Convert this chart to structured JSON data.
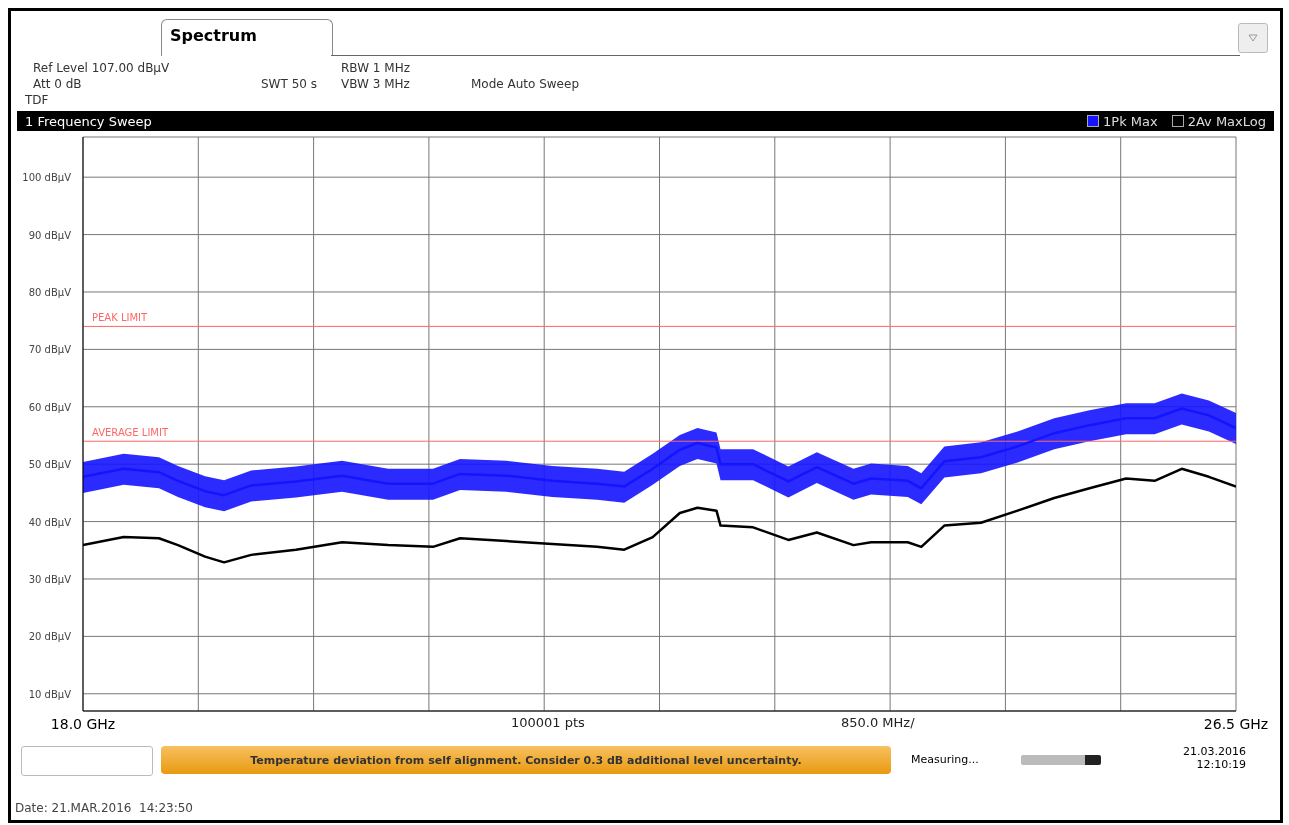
{
  "chart_data": {
    "type": "line",
    "title": "1 Frequency Sweep",
    "annotations": [
      "Spectrum",
      "Ref Level 107.00 dBµV",
      "Att 0 dB",
      "SWT 50 s",
      "RBW 1 MHz",
      "VBW 3 MHz",
      "Mode Auto Sweep",
      "TDF",
      "100001 pts",
      "850.0 MHz/",
      "Temperature deviation from self alignment. Consider 0.3 dB additional level uncertainty.",
      "Measuring...",
      "21.03.2016 12:10:19",
      "Date: 21.MAR.2016  14:23:50"
    ],
    "x": [
      18.0,
      18.3,
      18.56,
      18.7,
      18.9,
      19.04,
      19.24,
      19.57,
      19.91,
      20.25,
      20.58,
      20.78,
      21.12,
      21.46,
      21.79,
      21.99,
      22.2,
      22.4,
      22.53,
      22.67,
      22.7,
      22.94,
      23.2,
      23.41,
      23.68,
      23.81,
      24.08,
      24.18,
      24.35,
      24.62,
      24.89,
      25.16,
      25.42,
      25.69,
      25.9,
      26.1,
      26.3,
      26.5
    ],
    "series": [
      {
        "name": "1Pk Max",
        "color": "#1414ff",
        "values": [
          47.8,
          49.2,
          48.6,
          47.1,
          45.3,
          44.6,
          46.3,
          47.0,
          48.0,
          46.6,
          46.6,
          48.3,
          48.0,
          47.1,
          46.6,
          46.1,
          49.2,
          52.5,
          53.7,
          52.9,
          50.0,
          50.0,
          47.0,
          49.5,
          46.6,
          47.5,
          47.1,
          45.8,
          50.5,
          51.2,
          53.1,
          55.4,
          56.8,
          58.0,
          58.0,
          59.7,
          58.5,
          56.3
        ],
        "lower": [
          45.0,
          46.4,
          45.8,
          44.3,
          42.5,
          41.8,
          43.5,
          44.2,
          45.2,
          43.8,
          43.8,
          45.5,
          45.2,
          44.3,
          43.8,
          43.3,
          46.4,
          49.7,
          50.9,
          50.1,
          47.2,
          47.2,
          44.2,
          46.7,
          43.8,
          44.7,
          44.3,
          43.0,
          47.7,
          48.4,
          50.3,
          52.6,
          54.0,
          55.2,
          55.2,
          56.9,
          55.7,
          53.5
        ],
        "upper": [
          50.4,
          51.8,
          51.2,
          49.7,
          47.9,
          47.2,
          48.9,
          49.6,
          50.6,
          49.2,
          49.2,
          50.9,
          50.6,
          49.7,
          49.2,
          48.7,
          51.8,
          55.1,
          56.3,
          55.5,
          52.6,
          52.6,
          49.6,
          52.1,
          49.2,
          50.1,
          49.7,
          48.4,
          53.1,
          53.8,
          55.7,
          58.0,
          59.4,
          60.6,
          60.6,
          62.3,
          61.1,
          58.9
        ]
      },
      {
        "name": "2Av MaxLog",
        "color": "#000000",
        "values": [
          35.9,
          37.3,
          37.1,
          35.9,
          33.9,
          32.9,
          34.2,
          35.1,
          36.4,
          35.9,
          35.6,
          37.1,
          36.6,
          36.1,
          35.6,
          35.1,
          37.3,
          41.5,
          42.4,
          41.9,
          39.3,
          39.0,
          36.8,
          38.1,
          35.9,
          36.4,
          36.4,
          35.6,
          39.3,
          39.8,
          41.9,
          44.1,
          45.8,
          47.5,
          47.1,
          49.2,
          47.8,
          46.1
        ]
      }
    ],
    "xlim": [
      18.0,
      26.5
    ],
    "xticks": [
      {
        "value": 18.0,
        "label": "18.0 GHz"
      },
      {
        "value": 18.85,
        "label": null
      },
      {
        "value": 19.7,
        "label": null
      },
      {
        "value": 20.55,
        "label": null
      },
      {
        "value": 21.4,
        "label": null
      },
      {
        "value": 22.25,
        "label": null
      },
      {
        "value": 23.1,
        "label": null
      },
      {
        "value": 23.95,
        "label": null
      },
      {
        "value": 24.8,
        "label": null
      },
      {
        "value": 25.65,
        "label": null
      },
      {
        "value": 26.5,
        "label": "26.5 GHz"
      }
    ],
    "ylim": [
      7,
      107
    ],
    "yticks": [
      {
        "value": 10,
        "label": "10 dBµV"
      },
      {
        "value": 20,
        "label": "20 dBµV"
      },
      {
        "value": 30,
        "label": "30 dBµV"
      },
      {
        "value": 40,
        "label": "40 dBµV"
      },
      {
        "value": 50,
        "label": "50 dBµV"
      },
      {
        "value": 60,
        "label": "60 dBµV"
      },
      {
        "value": 70,
        "label": "70 dBµV"
      },
      {
        "value": 80,
        "label": "80 dBµV"
      },
      {
        "value": 90,
        "label": "90 dBµV"
      },
      {
        "value": 100,
        "label": "100 dBµV"
      }
    ],
    "ref_lines": [
      {
        "axis": "y",
        "value": 74,
        "label": "PEAK LIMIT",
        "color": "#ff6666"
      },
      {
        "axis": "y",
        "value": 54,
        "label": "AVERAGE LIMIT",
        "color": "#ff6666"
      }
    ],
    "grid": true,
    "legend": "top right",
    "marker": "none",
    "line_style": "solid"
  }
}
